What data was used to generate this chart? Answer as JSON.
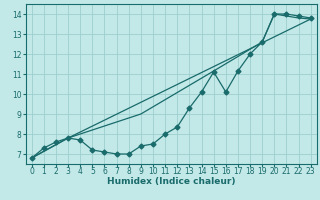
{
  "xlabel": "Humidex (Indice chaleur)",
  "xlim": [
    -0.5,
    23.5
  ],
  "ylim": [
    6.5,
    14.5
  ],
  "xticks": [
    0,
    1,
    2,
    3,
    4,
    5,
    6,
    7,
    8,
    9,
    10,
    11,
    12,
    13,
    14,
    15,
    16,
    17,
    18,
    19,
    20,
    21,
    22,
    23
  ],
  "yticks": [
    7,
    8,
    9,
    10,
    11,
    12,
    13,
    14
  ],
  "bg_color": "#c2e8e8",
  "grid_color": "#9ecece",
  "line_color": "#1a6b6b",
  "line1_x": [
    0,
    1,
    2,
    3,
    4,
    5,
    6,
    7,
    8,
    9,
    10,
    11,
    12,
    13,
    14,
    15,
    16,
    17,
    18,
    19,
    20,
    21,
    22,
    23
  ],
  "line1_y": [
    6.8,
    7.3,
    7.6,
    7.8,
    7.7,
    7.2,
    7.1,
    7.0,
    7.0,
    7.4,
    7.5,
    8.0,
    8.35,
    9.3,
    10.1,
    11.1,
    10.1,
    11.15,
    12.0,
    12.6,
    14.0,
    14.0,
    13.9,
    13.8
  ],
  "line2_x": [
    0,
    3,
    9,
    15,
    19,
    20,
    21,
    22,
    23
  ],
  "line2_y": [
    6.8,
    7.8,
    9.0,
    11.15,
    12.6,
    14.0,
    13.9,
    13.8,
    13.75
  ],
  "line3_x": [
    0,
    3,
    23
  ],
  "line3_y": [
    6.8,
    7.8,
    13.75
  ],
  "tick_fontsize": 5.5,
  "xlabel_fontsize": 6.5,
  "lw": 0.9,
  "ms": 2.5
}
